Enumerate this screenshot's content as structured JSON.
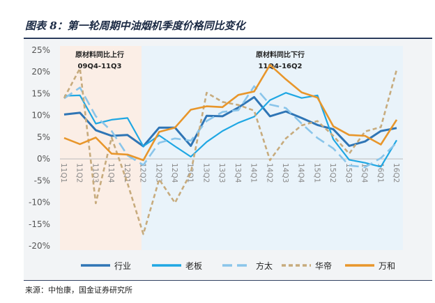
{
  "figure_title": "图表 8：第一轮周期中油烟机季度价格同比变化",
  "source_note": "来源：中怡康，国金证券研究所",
  "chart_data": {
    "type": "line",
    "x": [
      "11Q1",
      "11Q2",
      "11Q3",
      "11Q4",
      "12Q1",
      "12Q2",
      "12Q3",
      "12Q4",
      "13Q1",
      "13Q2",
      "13Q3",
      "13Q4",
      "14Q1",
      "14Q2",
      "14Q3",
      "14Q4",
      "15Q1",
      "15Q2",
      "15Q3",
      "15Q4",
      "16Q1",
      "16Q2"
    ],
    "ylim": [
      -0.2,
      0.25
    ],
    "yticks": [
      -0.2,
      -0.15,
      -0.1,
      -0.05,
      0,
      0.05,
      0.1,
      0.15,
      0.2,
      0.25
    ],
    "ytick_labels": [
      "-20%",
      "-15%",
      "-10%",
      "-5%",
      "0%",
      "5%",
      "10%",
      "15%",
      "20%",
      "25%"
    ],
    "grid": false,
    "legend_position": "bottom",
    "series": [
      {
        "name": "行业",
        "color": "#2f75b5",
        "dash": "solid",
        "values": [
          0.102,
          0.106,
          0.066,
          0.053,
          0.055,
          0.029,
          0.072,
          0.072,
          0.03,
          0.099,
          0.098,
          0.118,
          0.142,
          0.098,
          0.109,
          0.094,
          0.078,
          0.068,
          0.03,
          0.04,
          0.064,
          0.071
        ]
      },
      {
        "name": "老板",
        "color": "#1fa7e3",
        "dash": "solid",
        "values": [
          0.145,
          0.146,
          0.081,
          0.09,
          0.094,
          0.029,
          0.054,
          0.029,
          0.005,
          0.039,
          0.064,
          0.083,
          0.097,
          0.135,
          0.152,
          0.14,
          0.146,
          0.045,
          -0.002,
          -0.009,
          -0.018,
          0.043
        ]
      },
      {
        "name": "方太",
        "color": "#8ac5ea",
        "dash": "long-dash",
        "values": [
          0.139,
          0.164,
          0.098,
          0.064,
          0.008,
          -0.014,
          0.037,
          0.047,
          0.042,
          0.087,
          0.108,
          0.112,
          0.167,
          0.125,
          0.117,
          0.081,
          0.048,
          0.024,
          -0.015,
          -0.019,
          0.002,
          0.037
        ]
      },
      {
        "name": "华帝",
        "color": "#c7ab7d",
        "dash": "short-dash",
        "values": [
          0.14,
          0.208,
          -0.102,
          0.049,
          -0.056,
          -0.173,
          -0.047,
          -0.101,
          -0.032,
          0.152,
          0.131,
          0.124,
          0.111,
          -0.003,
          0.047,
          0.077,
          0.087,
          0.053,
          0.012,
          0.063,
          0.073,
          0.205
        ]
      },
      {
        "name": "万和",
        "color": "#e8962b",
        "dash": "solid",
        "values": [
          0.048,
          0.034,
          0.049,
          0.012,
          0.01,
          -0.003,
          0.062,
          0.072,
          0.113,
          0.121,
          0.119,
          0.147,
          0.155,
          0.216,
          0.183,
          0.153,
          0.141,
          0.075,
          0.055,
          0.053,
          0.033,
          0.09
        ]
      }
    ],
    "annotations": [
      {
        "lines": [
          "原材料同比上行",
          "09Q4-11Q3"
        ],
        "shade_color": "#fbeee6"
      },
      {
        "lines": [
          "原材料同比下行",
          "11Q4-16Q2"
        ],
        "shade_color": "#e9f3fa"
      }
    ]
  }
}
